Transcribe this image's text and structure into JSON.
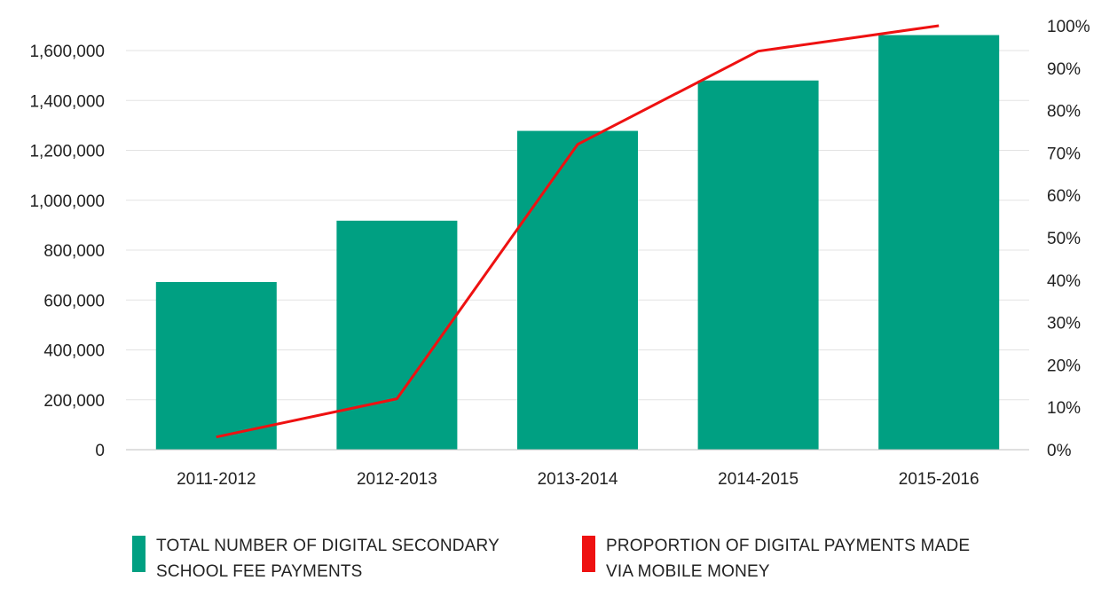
{
  "chart_data": {
    "type": "bar",
    "categories": [
      "2011-2012",
      "2012-2013",
      "2013-2014",
      "2014-2015",
      "2015-2016"
    ],
    "series": [
      {
        "name": "TOTAL NUMBER OF DIGITAL SECONDARY SCHOOL FEE PAYMENTS",
        "type": "bar",
        "axis": "left",
        "color": "#00a082",
        "values": [
          672000,
          918000,
          1278000,
          1480000,
          1662000
        ]
      },
      {
        "name": "PROPORTION OF DIGITAL PAYMENTS MADE VIA MOBILE MONEY",
        "type": "line",
        "axis": "right",
        "color": "#ee1111",
        "values": [
          3,
          12,
          72,
          94,
          100
        ]
      }
    ],
    "left_axis": {
      "ylim": [
        0,
        1700000
      ],
      "ticks": [
        0,
        200000,
        400000,
        600000,
        800000,
        1000000,
        1200000,
        1400000,
        1600000
      ],
      "tick_labels": [
        "0",
        "200,000",
        "400,000",
        "600,000",
        "800,000",
        "1,000,000",
        "1,200,000",
        "1,400,000",
        "1,600,000"
      ]
    },
    "right_axis": {
      "ylim": [
        0,
        100
      ],
      "ticks": [
        0,
        10,
        20,
        30,
        40,
        50,
        60,
        70,
        80,
        90,
        100
      ],
      "tick_labels": [
        "0%",
        "10%",
        "20%",
        "30%",
        "40%",
        "50%",
        "60%",
        "70%",
        "80%",
        "90%",
        "100%"
      ]
    },
    "title": "",
    "xlabel": "",
    "ylabel": "",
    "grid": true,
    "legend_position": "bottom"
  },
  "legend": {
    "bars_label": "TOTAL NUMBER OF DIGITAL SECONDARY\nSCHOOL FEE PAYMENTS",
    "line_label": "PROPORTION OF DIGITAL PAYMENTS MADE\nVIA MOBILE MONEY"
  }
}
